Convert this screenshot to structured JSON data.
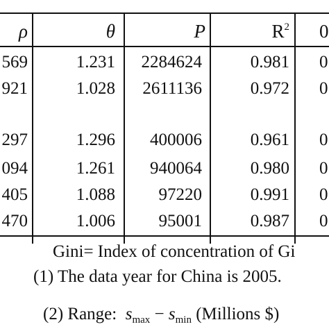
{
  "table": {
    "headers": {
      "rho": "ρ",
      "theta": "θ",
      "p": "P",
      "r2_base": "R",
      "r2_exp": "2",
      "last": "0"
    },
    "rows": [
      {
        "rho": "569",
        "theta": "1.231",
        "p": "2284624",
        "r2": "0.981",
        "last": "0"
      },
      {
        "rho": "921",
        "theta": "1.028",
        "p": "2611136",
        "r2": "0.972",
        "last": "0"
      },
      {
        "rho": "297",
        "theta": "1.296",
        "p": "400006",
        "r2": "0.961",
        "last": "0"
      },
      {
        "rho": "094",
        "theta": "1.261",
        "p": "940064",
        "r2": "0.980",
        "last": "0"
      },
      {
        "rho": "405",
        "theta": "1.088",
        "p": "97220",
        "r2": "0.991",
        "last": "0"
      },
      {
        "rho": "470",
        "theta": "1.006",
        "p": "95001",
        "r2": "0.987",
        "last": "0"
      }
    ]
  },
  "notes": {
    "gini": "Gini= Index of concentration of Gi",
    "note1": "(1) The data year for China is 2005.",
    "note2_prefix": "(2) Range:",
    "note2_s1": "s",
    "note2_sub1": "max",
    "note2_minus": "−",
    "note2_s2": "s",
    "note2_sub2": "min",
    "note2_suffix": "(Millions $)"
  }
}
